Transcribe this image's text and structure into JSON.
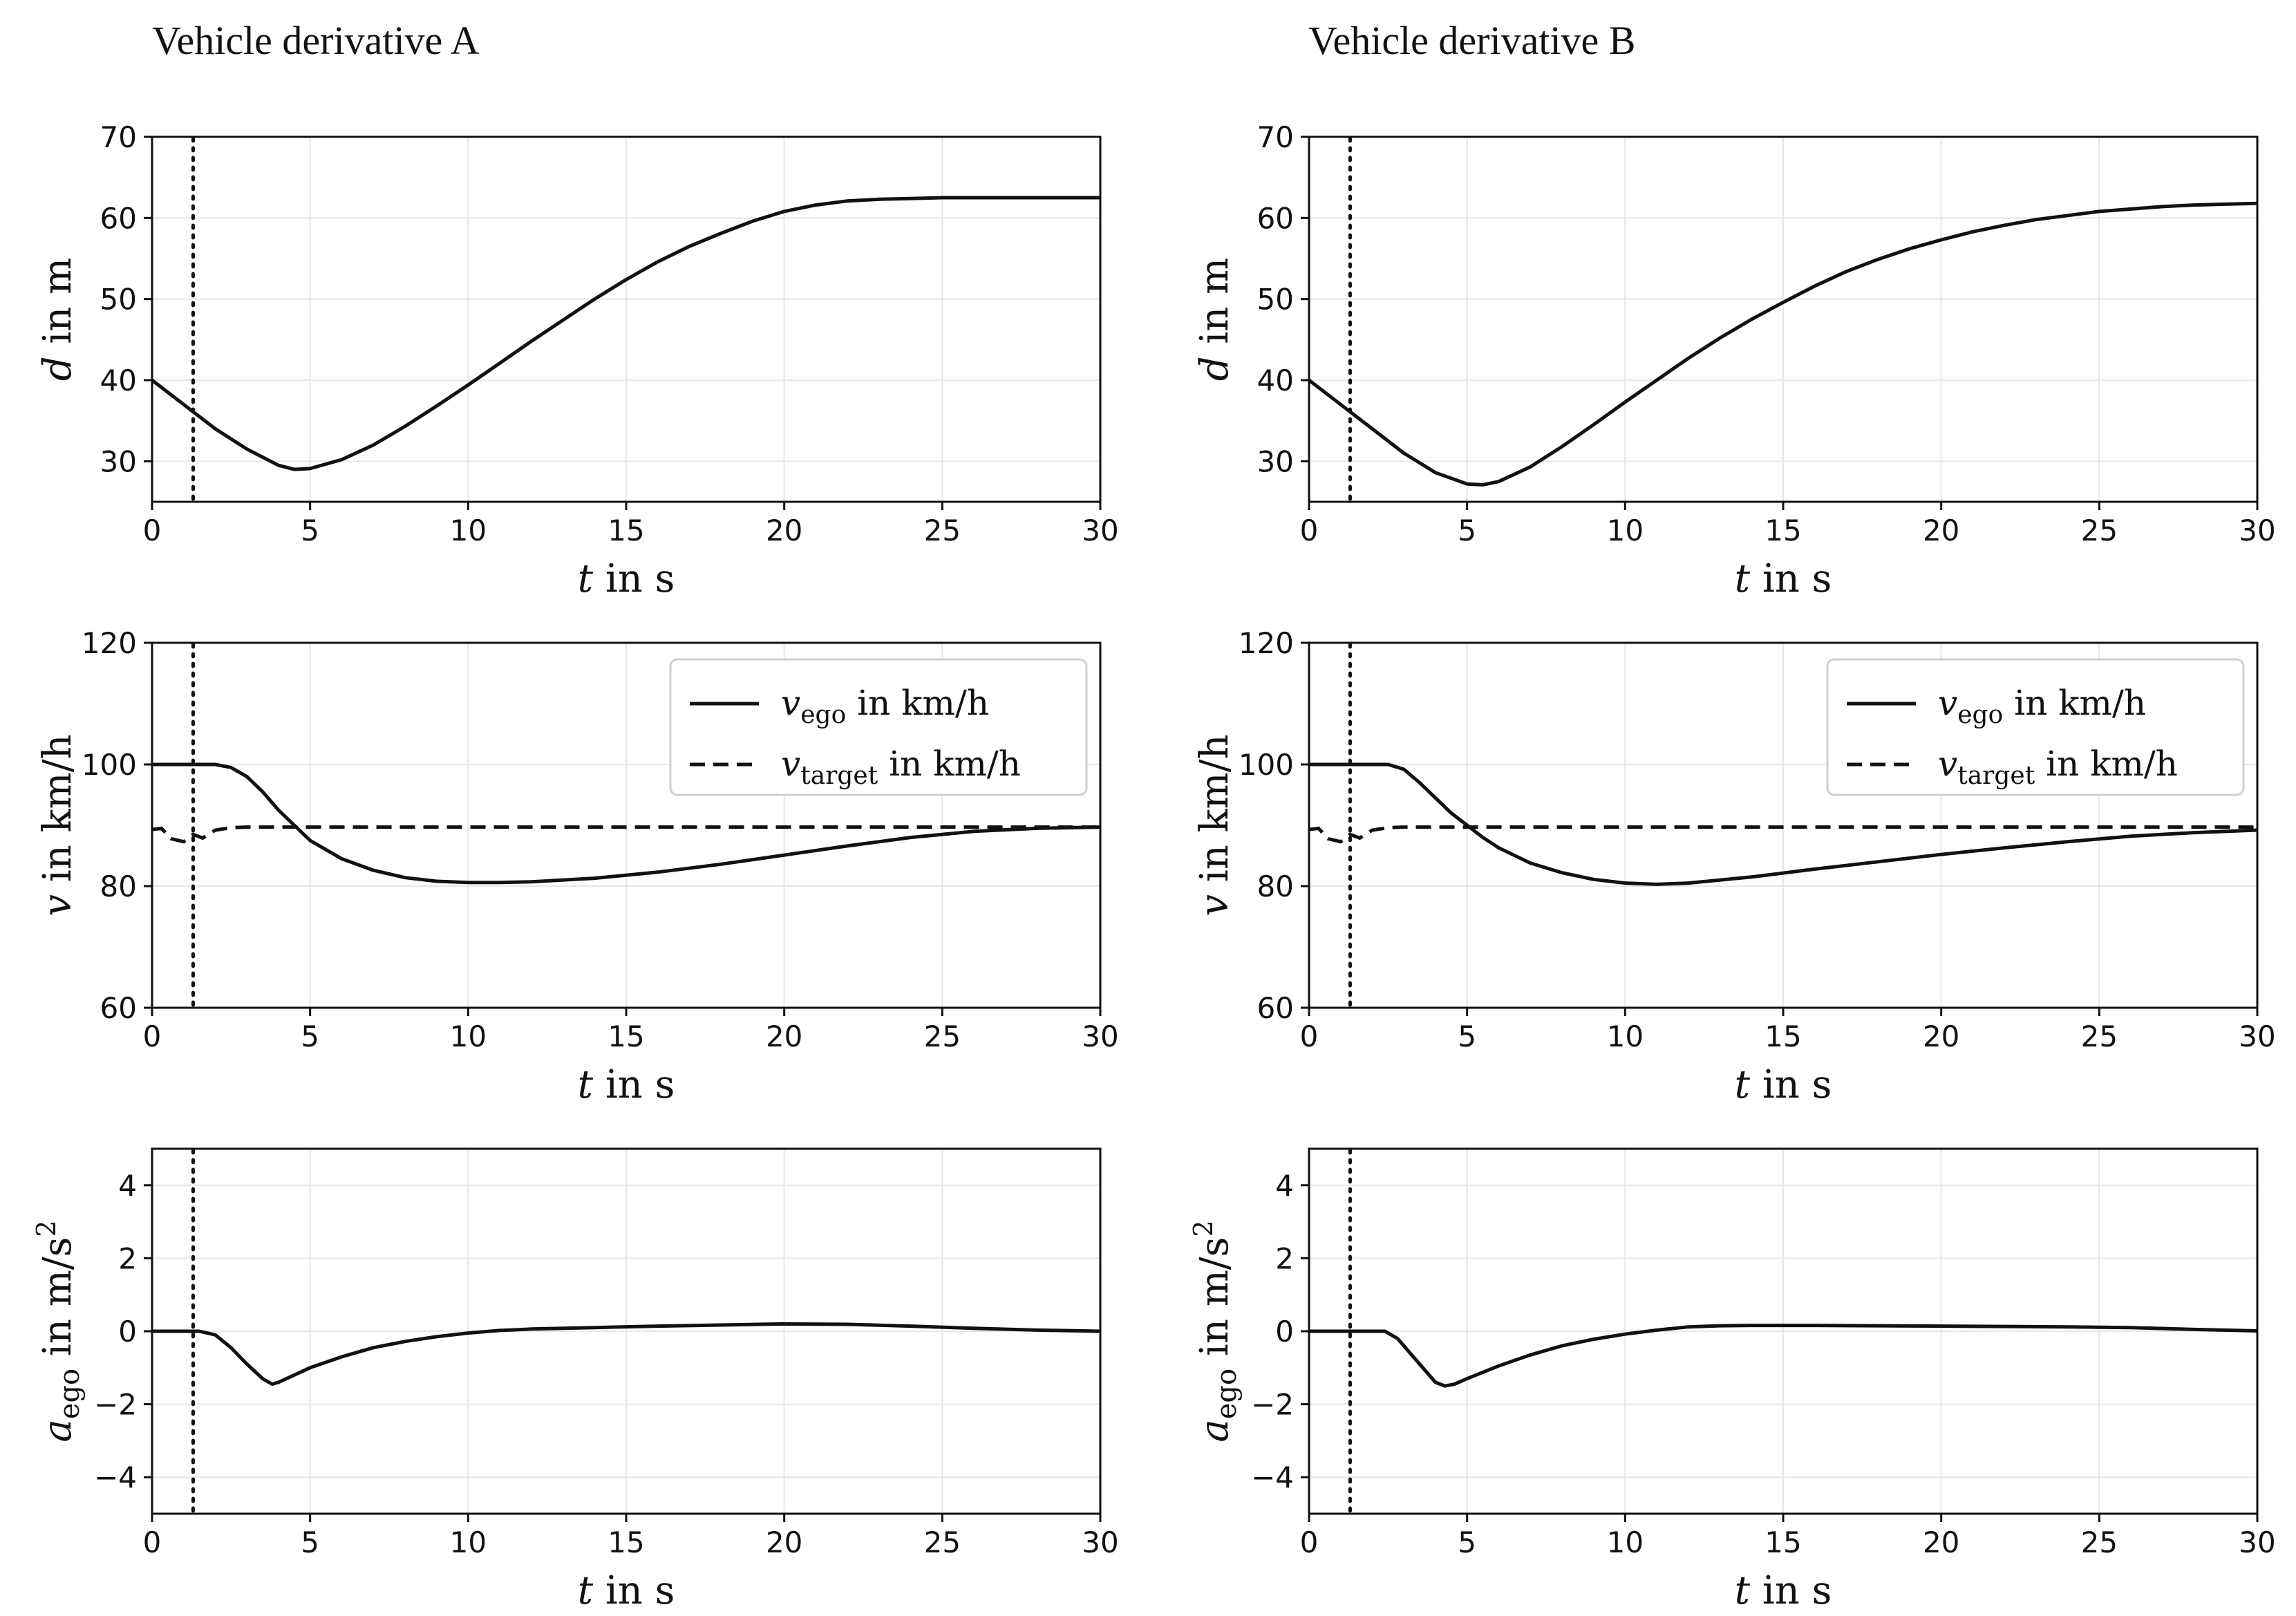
{
  "columns": [
    {
      "title": "Vehicle derivative A"
    },
    {
      "title": "Vehicle derivative B"
    }
  ],
  "chart_data": [
    {
      "type": "line",
      "column": 0,
      "row": 0,
      "ylabel": "d in m",
      "xlabel": "t in s",
      "xlim": [
        0,
        30
      ],
      "ylim": [
        25,
        70
      ],
      "xticks": [
        0,
        5,
        10,
        15,
        20,
        25,
        30
      ],
      "yticks": [
        30,
        40,
        50,
        60,
        70
      ],
      "marker_x": 1.3,
      "grid": true,
      "series": [
        {
          "name": "d",
          "style": "solid",
          "x": [
            0,
            1,
            2,
            3,
            4,
            4.5,
            5,
            6,
            7,
            8,
            9,
            10,
            11,
            12,
            13,
            14,
            15,
            16,
            17,
            18,
            19,
            20,
            21,
            22,
            23,
            24,
            25,
            26,
            27,
            28,
            29,
            30
          ],
          "y": [
            40,
            37,
            34,
            31.5,
            29.5,
            29,
            29.1,
            30.2,
            32,
            34.3,
            36.8,
            39.4,
            42.1,
            44.8,
            47.4,
            50,
            52.4,
            54.6,
            56.5,
            58.1,
            59.6,
            60.8,
            61.6,
            62.1,
            62.3,
            62.4,
            62.5,
            62.5,
            62.5,
            62.5,
            62.5,
            62.5
          ]
        }
      ]
    },
    {
      "type": "line",
      "column": 0,
      "row": 1,
      "ylabel": "v in km/h",
      "xlabel": "t in s",
      "xlim": [
        0,
        30
      ],
      "ylim": [
        60,
        120
      ],
      "xticks": [
        0,
        5,
        10,
        15,
        20,
        25,
        30
      ],
      "yticks": [
        60,
        80,
        100,
        120
      ],
      "marker_x": 1.3,
      "grid": true,
      "legend": {
        "position": "top-right",
        "entries": [
          {
            "base": "v",
            "sub": "ego",
            "suffix": " in km/h",
            "style": "solid"
          },
          {
            "base": "v",
            "sub": "target",
            "suffix": " in km/h",
            "style": "dashed"
          }
        ]
      },
      "series": [
        {
          "name": "v_ego",
          "style": "solid",
          "x": [
            0,
            1,
            2,
            2.5,
            3,
            3.5,
            4,
            4.5,
            5,
            6,
            7,
            8,
            9,
            10,
            11,
            12,
            14,
            16,
            18,
            20,
            22,
            24,
            26,
            28,
            30
          ],
          "y": [
            100,
            100,
            100,
            99.5,
            98,
            95.5,
            92.5,
            90,
            87.5,
            84.5,
            82.6,
            81.4,
            80.8,
            80.6,
            80.6,
            80.7,
            81.3,
            82.3,
            83.6,
            85.1,
            86.6,
            88,
            89,
            89.5,
            89.7
          ]
        },
        {
          "name": "v_target",
          "style": "dashed",
          "x": [
            0,
            0.3,
            0.6,
            1,
            1.3,
            1.6,
            2,
            2.5,
            3,
            4,
            5,
            10,
            15,
            20,
            25,
            30
          ],
          "y": [
            89.3,
            89.5,
            87.8,
            87.3,
            88.5,
            87.9,
            89.2,
            89.6,
            89.7,
            89.7,
            89.7,
            89.7,
            89.7,
            89.7,
            89.7,
            89.7
          ]
        }
      ]
    },
    {
      "type": "line",
      "column": 0,
      "row": 2,
      "ylabel": "a_ego in m/s^2",
      "xlabel": "t in s",
      "xlim": [
        0,
        30
      ],
      "ylim": [
        -5,
        5
      ],
      "xticks": [
        0,
        5,
        10,
        15,
        20,
        25,
        30
      ],
      "yticks": [
        -4,
        -2,
        0,
        2,
        4
      ],
      "marker_x": 1.3,
      "grid": true,
      "series": [
        {
          "name": "a_ego",
          "style": "solid",
          "x": [
            0,
            1,
            1.5,
            2,
            2.5,
            3,
            3.5,
            3.8,
            4,
            4.5,
            5,
            6,
            7,
            8,
            9,
            10,
            11,
            12,
            14,
            16,
            18,
            20,
            22,
            24,
            26,
            28,
            30
          ],
          "y": [
            0,
            0,
            0,
            -0.1,
            -0.45,
            -0.9,
            -1.3,
            -1.45,
            -1.4,
            -1.2,
            -1,
            -0.7,
            -0.45,
            -0.28,
            -0.15,
            -0.05,
            0.02,
            0.06,
            0.1,
            0.14,
            0.17,
            0.2,
            0.19,
            0.14,
            0.08,
            0.03,
            0
          ]
        }
      ]
    },
    {
      "type": "line",
      "column": 1,
      "row": 0,
      "ylabel": "d in m",
      "xlabel": "t in s",
      "xlim": [
        0,
        30
      ],
      "ylim": [
        25,
        70
      ],
      "xticks": [
        0,
        5,
        10,
        15,
        20,
        25,
        30
      ],
      "yticks": [
        30,
        40,
        50,
        60,
        70
      ],
      "marker_x": 1.3,
      "grid": true,
      "series": [
        {
          "name": "d",
          "style": "solid",
          "x": [
            0,
            1,
            2,
            3,
            4,
            5,
            5.5,
            6,
            7,
            8,
            9,
            10,
            11,
            12,
            13,
            14,
            15,
            16,
            17,
            18,
            19,
            20,
            21,
            22,
            23,
            24,
            25,
            26,
            27,
            28,
            29,
            30
          ],
          "y": [
            40,
            37,
            34,
            31,
            28.6,
            27.2,
            27.1,
            27.5,
            29.3,
            31.8,
            34.5,
            37.3,
            40,
            42.7,
            45.2,
            47.5,
            49.6,
            51.6,
            53.4,
            54.9,
            56.2,
            57.3,
            58.3,
            59.1,
            59.8,
            60.3,
            60.8,
            61.1,
            61.4,
            61.6,
            61.7,
            61.8
          ]
        }
      ]
    },
    {
      "type": "line",
      "column": 1,
      "row": 1,
      "ylabel": "v in km/h",
      "xlabel": "t in s",
      "xlim": [
        0,
        30
      ],
      "ylim": [
        60,
        120
      ],
      "xticks": [
        0,
        5,
        10,
        15,
        20,
        25,
        30
      ],
      "yticks": [
        60,
        80,
        100,
        120
      ],
      "marker_x": 1.3,
      "grid": true,
      "legend": {
        "position": "top-right",
        "entries": [
          {
            "base": "v",
            "sub": "ego",
            "suffix": " in km/h",
            "style": "solid"
          },
          {
            "base": "v",
            "sub": "target",
            "suffix": " in km/h",
            "style": "dashed"
          }
        ]
      },
      "series": [
        {
          "name": "v_ego",
          "style": "solid",
          "x": [
            0,
            1,
            2,
            2.5,
            3,
            3.5,
            4,
            4.5,
            5,
            5.5,
            6,
            7,
            8,
            9,
            10,
            11,
            12,
            14,
            16,
            18,
            20,
            22,
            24,
            26,
            28,
            30
          ],
          "y": [
            100,
            100,
            100,
            100,
            99.2,
            97,
            94.5,
            92,
            90,
            88,
            86.3,
            83.8,
            82.2,
            81.1,
            80.5,
            80.3,
            80.5,
            81.5,
            82.8,
            84,
            85.2,
            86.3,
            87.3,
            88.2,
            88.8,
            89.2
          ]
        },
        {
          "name": "v_target",
          "style": "dashed",
          "x": [
            0,
            0.3,
            0.6,
            1,
            1.3,
            1.6,
            2,
            2.5,
            3,
            4,
            5,
            10,
            15,
            20,
            25,
            30
          ],
          "y": [
            89.3,
            89.5,
            87.8,
            87.3,
            88.5,
            87.9,
            89.2,
            89.6,
            89.7,
            89.7,
            89.7,
            89.7,
            89.7,
            89.7,
            89.7,
            89.7
          ]
        }
      ]
    },
    {
      "type": "line",
      "column": 1,
      "row": 2,
      "ylabel": "a_ego in m/s^2",
      "xlabel": "t in s",
      "xlim": [
        0,
        30
      ],
      "ylim": [
        -5,
        5
      ],
      "xticks": [
        0,
        5,
        10,
        15,
        20,
        25,
        30
      ],
      "yticks": [
        -4,
        -2,
        0,
        2,
        4
      ],
      "marker_x": 1.3,
      "grid": true,
      "series": [
        {
          "name": "a_ego",
          "style": "solid",
          "x": [
            0,
            1,
            2,
            2.4,
            2.8,
            3.2,
            3.6,
            4,
            4.3,
            4.6,
            5,
            6,
            7,
            8,
            9,
            10,
            11,
            12,
            13,
            14,
            16,
            18,
            20,
            22,
            24,
            26,
            28,
            30
          ],
          "y": [
            0,
            0,
            0,
            0,
            -0.2,
            -0.6,
            -1,
            -1.4,
            -1.5,
            -1.45,
            -1.3,
            -0.95,
            -0.65,
            -0.4,
            -0.22,
            -0.08,
            0.03,
            0.12,
            0.15,
            0.16,
            0.16,
            0.15,
            0.14,
            0.13,
            0.12,
            0.1,
            0.05,
            0.01
          ]
        }
      ]
    }
  ]
}
